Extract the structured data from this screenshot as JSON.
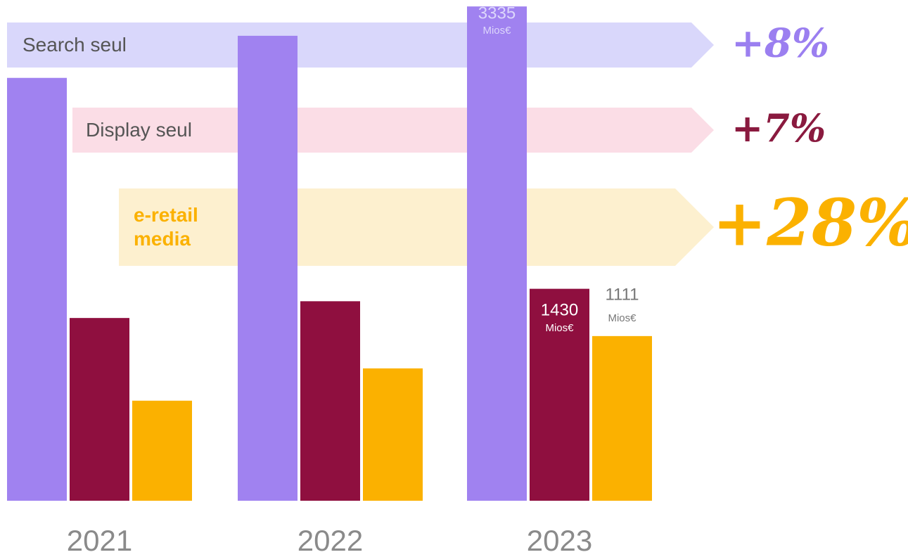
{
  "chart_data": {
    "type": "bar",
    "categories": [
      "2021",
      "2022",
      "2023"
    ],
    "unit": "Mios€",
    "ylim": [
      0,
      3350
    ],
    "series": [
      {
        "name": "Search seul",
        "color": "#a082f0",
        "band_color": "#d9d7fb",
        "growth": "+8%",
        "growth_color": "#9b7ff0",
        "values": [
          2853,
          3137,
          3335
        ]
      },
      {
        "name": "Display seul",
        "color": "#8f0f3f",
        "band_color": "#fbdde6",
        "growth": "+7%",
        "growth_color": "#8a1a3f",
        "values": [
          1233,
          1346,
          1430
        ]
      },
      {
        "name": "e-retail media",
        "color": "#fbb100",
        "band_color": "#fdf0cf",
        "growth": "+28%",
        "growth_color": "#fbb100",
        "values": [
          675,
          893,
          1111
        ]
      }
    ]
  }
}
